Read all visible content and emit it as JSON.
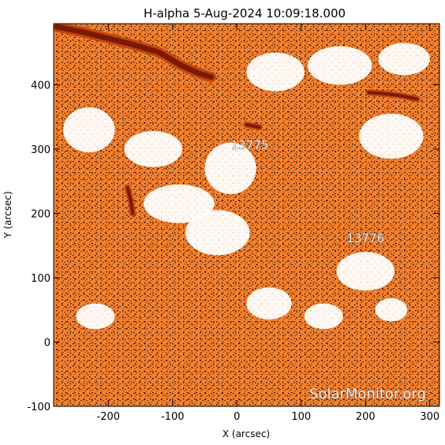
{
  "title": "H-alpha   5-Aug-2024 10:09:18.000",
  "xlabel": "X (arcsec)",
  "ylabel": "Y (arcsec)",
  "x_ticks": [
    "-200",
    "-100",
    "0",
    "100",
    "200",
    "300"
  ],
  "y_ticks": [
    "-100",
    "0",
    "100",
    "200",
    "300",
    "400"
  ],
  "active_regions": [
    {
      "label": "13775",
      "x": 20,
      "y": 300
    },
    {
      "label": "13776",
      "x": 200,
      "y": 155
    }
  ],
  "watermark": "SolarMonitor.org",
  "colors": {
    "background": "#f0741c",
    "plage": "#ffffff",
    "filament": "#7a1a05",
    "speckle": "#1a0a02"
  },
  "map": {
    "xlim": [
      -285,
      315
    ],
    "ylim": [
      -100,
      495
    ],
    "filaments": [
      [
        [
          -280,
          490
        ],
        [
          -240,
          482
        ],
        [
          -200,
          472
        ],
        [
          -160,
          462
        ],
        [
          -120,
          450
        ],
        [
          -90,
          432
        ],
        [
          -60,
          418
        ],
        [
          -40,
          412
        ]
      ],
      [
        [
          205,
          388
        ],
        [
          230,
          386
        ],
        [
          255,
          383
        ],
        [
          280,
          378
        ]
      ],
      [
        [
          -170,
          240
        ],
        [
          -165,
          220
        ],
        [
          -162,
          200
        ]
      ],
      [
        [
          15,
          338
        ],
        [
          35,
          334
        ]
      ]
    ],
    "plage": [
      {
        "x": -130,
        "y": 300,
        "rx": 45,
        "ry": 28
      },
      {
        "x": -10,
        "y": 270,
        "rx": 40,
        "ry": 40
      },
      {
        "x": -90,
        "y": 215,
        "rx": 55,
        "ry": 30
      },
      {
        "x": -30,
        "y": 170,
        "rx": 50,
        "ry": 35
      },
      {
        "x": -230,
        "y": 330,
        "rx": 40,
        "ry": 35
      },
      {
        "x": 160,
        "y": 430,
        "rx": 50,
        "ry": 30
      },
      {
        "x": 240,
        "y": 320,
        "rx": 50,
        "ry": 35
      },
      {
        "x": 200,
        "y": 110,
        "rx": 45,
        "ry": 30
      },
      {
        "x": 135,
        "y": 40,
        "rx": 30,
        "ry": 20
      },
      {
        "x": 240,
        "y": 50,
        "rx": 25,
        "ry": 18
      },
      {
        "x": 60,
        "y": 420,
        "rx": 45,
        "ry": 30
      },
      {
        "x": 260,
        "y": 440,
        "rx": 40,
        "ry": 25
      },
      {
        "x": -220,
        "y": 40,
        "rx": 30,
        "ry": 20
      },
      {
        "x": 50,
        "y": 60,
        "rx": 35,
        "ry": 25
      }
    ]
  }
}
